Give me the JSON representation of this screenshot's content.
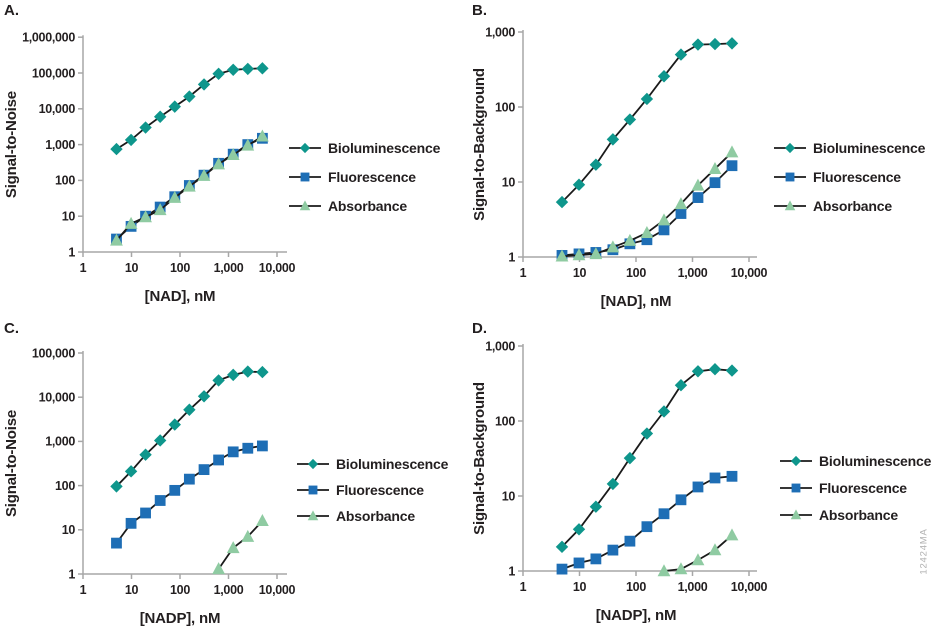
{
  "watermark": "12424MA",
  "colors": {
    "axis": "#A7A7A7",
    "text": "#231F20",
    "line": "#1A1A1A",
    "bioluminescence": "#0E968C",
    "fluorescence": "#1E6EB5",
    "absorbance": "#8FCBA2",
    "background": "#FFFFFF"
  },
  "chart_data": [
    {
      "panel_label": "A.",
      "type": "line",
      "xscale": "log",
      "yscale": "log",
      "title": "",
      "xlabel": "[NAD], nM",
      "ylabel": "Signal-to-Noise",
      "xlim": [
        1,
        20000
      ],
      "ylim": [
        1,
        1000000
      ],
      "x_tick_labels": [
        "1",
        "10",
        "100",
        "1,000",
        "10,000"
      ],
      "y_tick_labels": [
        "1",
        "10",
        "100",
        "1,000",
        "10,000",
        "100,000",
        "1,000,000"
      ],
      "grid": false,
      "legend_position": "right",
      "series": [
        {
          "name": "Bioluminescence",
          "marker": "diamond",
          "color": "#0E968C",
          "x": [
            4.9,
            9.8,
            19.5,
            39,
            78,
            156,
            313,
            625,
            1250,
            2500,
            5000
          ],
          "y": [
            750,
            1350,
            3000,
            6000,
            11500,
            22000,
            48000,
            95000,
            123000,
            130000,
            135000
          ]
        },
        {
          "name": "Fluorescence",
          "marker": "square",
          "color": "#1E6EB5",
          "x": [
            4.9,
            9.8,
            19.5,
            39,
            78,
            156,
            313,
            625,
            1250,
            2500,
            5000
          ],
          "y": [
            2.3,
            5.2,
            10,
            18,
            35,
            72,
            140,
            300,
            540,
            1000,
            1500
          ]
        },
        {
          "name": "Absorbance",
          "marker": "triangle",
          "color": "#8FCBA2",
          "x": [
            4.9,
            9.8,
            19.5,
            39,
            78,
            156,
            313,
            625,
            1250,
            2500,
            5000
          ],
          "y": [
            2.1,
            6.2,
            9.5,
            15,
            33,
            68,
            135,
            285,
            520,
            950,
            1700
          ]
        }
      ]
    },
    {
      "panel_label": "B.",
      "type": "line",
      "xscale": "log",
      "yscale": "log",
      "title": "",
      "xlabel": "[NAD], nM",
      "ylabel": "Signal-to-Background",
      "xlim": [
        1,
        20000
      ],
      "ylim": [
        1,
        1000
      ],
      "x_tick_labels": [
        "1",
        "10",
        "100",
        "1,000",
        "10,000"
      ],
      "y_tick_labels": [
        "1",
        "10",
        "100",
        "1,000"
      ],
      "grid": false,
      "legend_position": "right",
      "series": [
        {
          "name": "Bioluminescence",
          "marker": "diamond",
          "color": "#0E968C",
          "x": [
            4.9,
            9.8,
            19.5,
            39,
            78,
            156,
            313,
            625,
            1250,
            2500,
            5000
          ],
          "y": [
            5.4,
            9.2,
            17,
            37,
            68,
            128,
            257,
            500,
            680,
            690,
            705
          ]
        },
        {
          "name": "Fluorescence",
          "marker": "square",
          "color": "#1E6EB5",
          "x": [
            4.9,
            9.8,
            19.5,
            39,
            78,
            156,
            313,
            625,
            1250,
            2500,
            5000
          ],
          "y": [
            1.05,
            1.1,
            1.15,
            1.25,
            1.5,
            1.7,
            2.3,
            3.8,
            6.2,
            9.8,
            16.5
          ]
        },
        {
          "name": "Absorbance",
          "marker": "triangle",
          "color": "#8FCBA2",
          "x": [
            4.9,
            9.8,
            19.5,
            39,
            78,
            156,
            313,
            625,
            1250,
            2500,
            5000
          ],
          "y": [
            1.02,
            1.06,
            1.1,
            1.35,
            1.65,
            2.1,
            3.1,
            5.1,
            9.0,
            15,
            25
          ]
        }
      ]
    },
    {
      "panel_label": "C.",
      "type": "line",
      "xscale": "log",
      "yscale": "log",
      "title": "",
      "xlabel": "[NADP], nM",
      "ylabel": "Signal-to-Noise",
      "xlim": [
        1,
        20000
      ],
      "ylim": [
        1,
        100000
      ],
      "x_tick_labels": [
        "1",
        "10",
        "100",
        "1,000",
        "10,000"
      ],
      "y_tick_labels": [
        "1",
        "10",
        "100",
        "1,000",
        "10,000",
        "100,000"
      ],
      "grid": false,
      "legend_position": "right",
      "series": [
        {
          "name": "Bioluminescence",
          "marker": "diamond",
          "color": "#0E968C",
          "x": [
            4.9,
            9.8,
            19.5,
            39,
            78,
            156,
            313,
            625,
            1250,
            2500,
            5000
          ],
          "y": [
            96,
            210,
            500,
            1050,
            2400,
            5200,
            10500,
            24000,
            32000,
            38000,
            37000
          ]
        },
        {
          "name": "Fluorescence",
          "marker": "square",
          "color": "#1E6EB5",
          "x": [
            4.9,
            9.8,
            19.5,
            39,
            78,
            156,
            313,
            625,
            1250,
            2500,
            5000
          ],
          "y": [
            5,
            14,
            24,
            46,
            78,
            140,
            230,
            380,
            580,
            700,
            790
          ]
        },
        {
          "name": "Absorbance",
          "marker": "triangle",
          "color": "#8FCBA2",
          "x": [
            625,
            1250,
            2500,
            5000
          ],
          "y": [
            1.3,
            3.9,
            7,
            16
          ]
        }
      ]
    },
    {
      "panel_label": "D.",
      "type": "line",
      "xscale": "log",
      "yscale": "log",
      "title": "",
      "xlabel": "[NADP], nM",
      "ylabel": "Signal-to-Background",
      "xlim": [
        1,
        20000
      ],
      "ylim": [
        1,
        1000
      ],
      "x_tick_labels": [
        "1",
        "10",
        "100",
        "1,000",
        "10,000"
      ],
      "y_tick_labels": [
        "1",
        "10",
        "100",
        "1,000"
      ],
      "grid": false,
      "legend_position": "right",
      "series": [
        {
          "name": "Bioluminescence",
          "marker": "diamond",
          "color": "#0E968C",
          "x": [
            4.9,
            9.8,
            19.5,
            39,
            78,
            156,
            313,
            625,
            1250,
            2500,
            5000
          ],
          "y": [
            2.1,
            3.6,
            7.2,
            14.5,
            32,
            68,
            134,
            300,
            460,
            490,
            470
          ]
        },
        {
          "name": "Fluorescence",
          "marker": "square",
          "color": "#1E6EB5",
          "x": [
            4.9,
            9.8,
            19.5,
            39,
            78,
            156,
            313,
            625,
            1250,
            2500,
            5000
          ],
          "y": [
            1.06,
            1.28,
            1.45,
            1.9,
            2.5,
            3.9,
            5.8,
            8.9,
            13.2,
            17.4,
            18.3
          ]
        },
        {
          "name": "Absorbance",
          "marker": "triangle",
          "color": "#8FCBA2",
          "x": [
            313,
            625,
            1250,
            2500,
            5000
          ],
          "y": [
            1.0,
            1.06,
            1.4,
            1.9,
            3.0
          ]
        }
      ]
    }
  ]
}
